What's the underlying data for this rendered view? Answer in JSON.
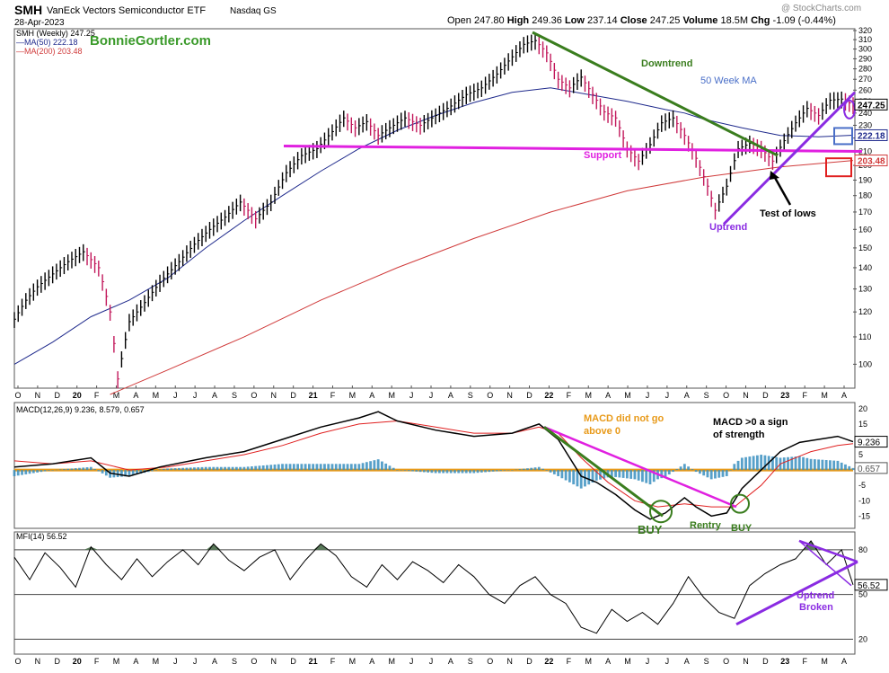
{
  "header": {
    "symbol": "SMH",
    "name": "VanEck Vectors Semiconductor ETF",
    "exchange": "Nasdaq GS",
    "date": "28-Apr-2023",
    "copyright": "@ StockCharts.com",
    "open_label": "Open",
    "open": "247.80",
    "high_label": "High",
    "high": "249.36",
    "low_label": "Low",
    "low": "237.14",
    "close_label": "Close",
    "close": "247.25",
    "volume_label": "Volume",
    "volume": "18.5M",
    "chg_label": "Chg",
    "chg": "-1.09 (-0.44%)",
    "watermark": "BonnieGortler.com"
  },
  "colors": {
    "price_bar": "#000000",
    "down_bar": "#c2185b",
    "ma50": "#1f2a8c",
    "ma200": "#d03a3a",
    "support": "#e020e0",
    "uptrend": "#8a2be2",
    "downtrend": "#3a7d1e",
    "macd_line": "#000000",
    "signal_line": "#e02020",
    "histogram": "#3a8fc0",
    "zero_line": "#e89a1a",
    "mfi_fill": "#5a7a5a",
    "buy_text": "#3a7d1e",
    "mfi_trend": "#8a2be2",
    "macd_trend": "#e020e0"
  },
  "chart_data": [
    {
      "type": "line",
      "panel": "price",
      "legend": [
        {
          "label": "SMH (Weekly) 247.25",
          "color": "#000000"
        },
        {
          "label": "MA(50) 222.18",
          "color": "#1f2a8c"
        },
        {
          "label": "MA(200) 203.48",
          "color": "#d03a3a"
        }
      ],
      "y_ticks": [
        100,
        110,
        120,
        130,
        140,
        150,
        160,
        170,
        180,
        190,
        200,
        210,
        220,
        230,
        240,
        250,
        260,
        270,
        280,
        290,
        300,
        310,
        320
      ],
      "ylim": [
        92,
        322
      ],
      "scale": "log",
      "x_ticks": [
        "O",
        "N",
        "D",
        "20",
        "F",
        "M",
        "A",
        "M",
        "J",
        "J",
        "A",
        "S",
        "O",
        "N",
        "D",
        "21",
        "F",
        "M",
        "A",
        "M",
        "J",
        "J",
        "A",
        "S",
        "O",
        "N",
        "D",
        "22",
        "F",
        "M",
        "A",
        "M",
        "J",
        "J",
        "A",
        "S",
        "O",
        "N",
        "D",
        "23",
        "F",
        "M",
        "A"
      ],
      "series": [
        {
          "name": "SMH (Weekly)",
          "points": [
            [
              0,
              117
            ],
            [
              3,
              125
            ],
            [
              6,
              131
            ],
            [
              10,
              137
            ],
            [
              14,
              143
            ],
            [
              18,
              148
            ],
            [
              22,
              140
            ],
            [
              25,
              120
            ],
            [
              27,
              95
            ],
            [
              30,
              116
            ],
            [
              34,
              124
            ],
            [
              38,
              133
            ],
            [
              43,
              143
            ],
            [
              47,
              152
            ],
            [
              51,
              160
            ],
            [
              55,
              167
            ],
            [
              59,
              176
            ],
            [
              63,
              166
            ],
            [
              67,
              176
            ],
            [
              71,
              195
            ],
            [
              75,
              207
            ],
            [
              79,
              212
            ],
            [
              83,
              225
            ],
            [
              86,
              236
            ],
            [
              89,
              228
            ],
            [
              92,
              233
            ],
            [
              95,
              222
            ],
            [
              98,
              228
            ],
            [
              102,
              236
            ],
            [
              106,
              230
            ],
            [
              110,
              238
            ],
            [
              114,
              246
            ],
            [
              118,
              256
            ],
            [
              122,
              262
            ],
            [
              126,
              275
            ],
            [
              130,
              292
            ],
            [
              133,
              305
            ],
            [
              136,
              309
            ],
            [
              139,
              296
            ],
            [
              142,
              270
            ],
            [
              145,
              262
            ],
            [
              148,
              272
            ],
            [
              151,
              256
            ],
            [
              154,
              241
            ],
            [
              157,
              236
            ],
            [
              160,
              212
            ],
            [
              163,
              203
            ],
            [
              166,
              215
            ],
            [
              169,
              232
            ],
            [
              172,
              236
            ],
            [
              175,
              222
            ],
            [
              178,
              205
            ],
            [
              181,
              186
            ],
            [
              183,
              171
            ],
            [
              186,
              186
            ],
            [
              189,
              212
            ],
            [
              192,
              216
            ],
            [
              195,
              212
            ],
            [
              198,
              203
            ],
            [
              201,
              218
            ],
            [
              204,
              232
            ],
            [
              207,
              244
            ],
            [
              210,
              238
            ],
            [
              213,
              251
            ],
            [
              216,
              252
            ],
            [
              219,
              247
            ]
          ]
        },
        {
          "name": "MA(50)",
          "points": [
            [
              0,
              100
            ],
            [
              10,
              108
            ],
            [
              20,
              118
            ],
            [
              30,
              125
            ],
            [
              40,
              135
            ],
            [
              50,
              150
            ],
            [
              60,
              165
            ],
            [
              70,
              180
            ],
            [
              80,
              196
            ],
            [
              90,
              212
            ],
            [
              100,
              226
            ],
            [
              110,
              238
            ],
            [
              120,
              249
            ],
            [
              130,
              258
            ],
            [
              140,
              262
            ],
            [
              150,
              256
            ],
            [
              160,
              250
            ],
            [
              170,
              243
            ],
            [
              175,
              240
            ],
            [
              180,
              235
            ],
            [
              190,
              228
            ],
            [
              195,
              225
            ],
            [
              200,
              222
            ],
            [
              210,
              221
            ],
            [
              219,
              222.18
            ]
          ]
        },
        {
          "name": "MA(200)",
          "points": [
            [
              25,
              90
            ],
            [
              40,
              98
            ],
            [
              60,
              110
            ],
            [
              80,
              125
            ],
            [
              100,
              140
            ],
            [
              120,
              155
            ],
            [
              140,
              170
            ],
            [
              160,
              183
            ],
            [
              180,
              192
            ],
            [
              200,
              199
            ],
            [
              219,
              203.48
            ]
          ]
        }
      ],
      "annotations": [
        "Downtrend",
        "50 Week MA",
        "Support",
        "Uptrend",
        "Test of lows"
      ],
      "last_value_labels": [
        "247.25",
        "222.18",
        "203.48"
      ]
    },
    {
      "type": "line",
      "panel": "macd",
      "legend": [
        {
          "label": "MACD(12,26,9) 9.236, 8.579, 0.657"
        }
      ],
      "y_ticks": [
        -15,
        -10,
        -5,
        0,
        5,
        10,
        15,
        20
      ],
      "ylim": [
        -19,
        22
      ],
      "series": [
        {
          "name": "MACD",
          "points": [
            [
              0,
              1
            ],
            [
              10,
              2
            ],
            [
              20,
              4
            ],
            [
              25,
              -1
            ],
            [
              30,
              -2
            ],
            [
              38,
              1
            ],
            [
              50,
              4
            ],
            [
              60,
              6
            ],
            [
              70,
              10
            ],
            [
              80,
              14
            ],
            [
              90,
              17
            ],
            [
              95,
              19
            ],
            [
              100,
              16
            ],
            [
              110,
              13
            ],
            [
              120,
              11
            ],
            [
              130,
              12
            ],
            [
              137,
              15
            ],
            [
              142,
              10
            ],
            [
              148,
              -2
            ],
            [
              152,
              -4
            ],
            [
              157,
              -8
            ],
            [
              162,
              -13
            ],
            [
              166,
              -16
            ],
            [
              170,
              -14
            ],
            [
              175,
              -9
            ],
            [
              178,
              -12
            ],
            [
              182,
              -15
            ],
            [
              186,
              -14
            ],
            [
              190,
              -6
            ],
            [
              195,
              0
            ],
            [
              200,
              6
            ],
            [
              205,
              9
            ],
            [
              210,
              10
            ],
            [
              215,
              11
            ],
            [
              219,
              9.236
            ]
          ]
        },
        {
          "name": "Signal",
          "points": [
            [
              0,
              3
            ],
            [
              10,
              2
            ],
            [
              20,
              3
            ],
            [
              30,
              0
            ],
            [
              40,
              1
            ],
            [
              50,
              3
            ],
            [
              60,
              5
            ],
            [
              70,
              8
            ],
            [
              80,
              12
            ],
            [
              90,
              15
            ],
            [
              100,
              16
            ],
            [
              110,
              14
            ],
            [
              120,
              12
            ],
            [
              130,
              12
            ],
            [
              137,
              14
            ],
            [
              142,
              12
            ],
            [
              148,
              4
            ],
            [
              155,
              -4
            ],
            [
              162,
              -10
            ],
            [
              168,
              -12
            ],
            [
              175,
              -11
            ],
            [
              182,
              -12
            ],
            [
              188,
              -12
            ],
            [
              195,
              -5
            ],
            [
              200,
              2
            ],
            [
              208,
              6
            ],
            [
              215,
              8
            ],
            [
              219,
              8.579
            ]
          ]
        },
        {
          "name": "Histogram",
          "values_note": "difference of MACD and signal",
          "last": 0.657
        }
      ],
      "annotations": [
        "MACD did not go above 0",
        "MACD >0 a sign of strength",
        "BUY",
        "Rentry",
        "BUY"
      ],
      "last_value_labels": [
        "9.236",
        "0.657"
      ]
    },
    {
      "type": "line",
      "panel": "mfi",
      "legend": [
        {
          "label": "MFI(14) 56.52"
        }
      ],
      "y_ticks": [
        20,
        50,
        80
      ],
      "ylim": [
        10,
        92
      ],
      "series": [
        {
          "name": "MFI",
          "points": [
            [
              0,
              75
            ],
            [
              4,
              60
            ],
            [
              8,
              78
            ],
            [
              12,
              68
            ],
            [
              16,
              55
            ],
            [
              20,
              82
            ],
            [
              24,
              70
            ],
            [
              28,
              60
            ],
            [
              32,
              74
            ],
            [
              36,
              62
            ],
            [
              40,
              72
            ],
            [
              44,
              80
            ],
            [
              48,
              70
            ],
            [
              52,
              84
            ],
            [
              56,
              73
            ],
            [
              60,
              66
            ],
            [
              64,
              75
            ],
            [
              68,
              80
            ],
            [
              72,
              60
            ],
            [
              76,
              73
            ],
            [
              80,
              84
            ],
            [
              84,
              76
            ],
            [
              88,
              62
            ],
            [
              92,
              55
            ],
            [
              96,
              70
            ],
            [
              100,
              60
            ],
            [
              104,
              72
            ],
            [
              108,
              66
            ],
            [
              112,
              58
            ],
            [
              116,
              70
            ],
            [
              120,
              62
            ],
            [
              124,
              50
            ],
            [
              128,
              44
            ],
            [
              132,
              56
            ],
            [
              136,
              62
            ],
            [
              140,
              50
            ],
            [
              144,
              44
            ],
            [
              148,
              28
            ],
            [
              152,
              24
            ],
            [
              156,
              40
            ],
            [
              160,
              32
            ],
            [
              164,
              38
            ],
            [
              168,
              30
            ],
            [
              172,
              44
            ],
            [
              176,
              62
            ],
            [
              180,
              48
            ],
            [
              184,
              38
            ],
            [
              188,
              34
            ],
            [
              192,
              56
            ],
            [
              196,
              64
            ],
            [
              200,
              70
            ],
            [
              204,
              74
            ],
            [
              208,
              86
            ],
            [
              212,
              70
            ],
            [
              216,
              80
            ],
            [
              219,
              56.52
            ]
          ]
        }
      ],
      "annotations": [
        "Uptrend Broken"
      ],
      "last_value_labels": [
        "56.52"
      ]
    }
  ]
}
